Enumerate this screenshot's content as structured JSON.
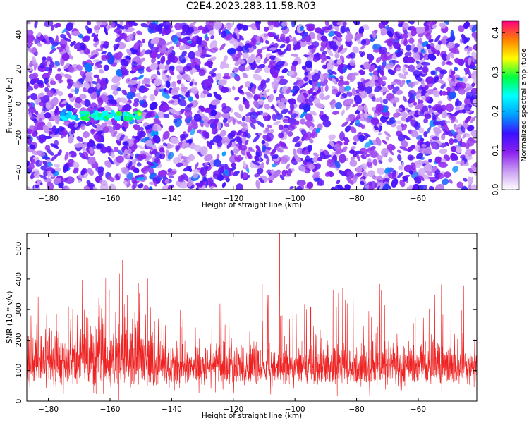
{
  "title": "C2E4.2023.283.11.58.R03",
  "colors": {
    "snr_line": "#ee2222",
    "background": "#ffffff"
  },
  "chart_data": [
    {
      "type": "heatmap",
      "xlabel": "Height of straight line (km)",
      "ylabel": "Frequency (Hz)",
      "xlim": [
        -187,
        -41
      ],
      "ylim": [
        -50,
        48
      ],
      "xticks": [
        -180,
        -160,
        -140,
        -120,
        -100,
        -80,
        -60
      ],
      "yticks": [
        -40,
        -20,
        0,
        20,
        40
      ],
      "colorbar": {
        "label": "Normalized spectral amplitude",
        "range": [
          0.0,
          0.43
        ],
        "ticks": [
          0.0,
          0.1,
          0.2,
          0.3,
          0.4
        ],
        "colormap": [
          "#ffffff",
          "#c99cf2",
          "#8b20f0",
          "#3a10ff",
          "#00a0ff",
          "#00ffff",
          "#00ff40",
          "#ffff00",
          "#ff8000",
          "#ff0080"
        ]
      },
      "features": [
        {
          "name": "strong band",
          "x_range": [
            -170,
            -150
          ],
          "freq": -7,
          "amplitude": 0.3
        }
      ]
    },
    {
      "type": "line",
      "xlabel": "Height of straight line (km)",
      "ylabel": "SNR (10 * v/v)",
      "xlim": [
        -187,
        -41
      ],
      "ylim": [
        0,
        550
      ],
      "xticks": [
        -180,
        -160,
        -140,
        -120,
        -100,
        -80,
        -60
      ],
      "yticks": [
        0,
        100,
        200,
        300,
        400,
        500
      ],
      "series": [
        {
          "baseline_mean": 125,
          "noise_range": [
            40,
            330
          ],
          "peak": {
            "x": -105,
            "y": 550
          },
          "elevated_region": {
            "x_range": [
              -165,
              -148
            ],
            "max": 470
          }
        }
      ]
    }
  ]
}
